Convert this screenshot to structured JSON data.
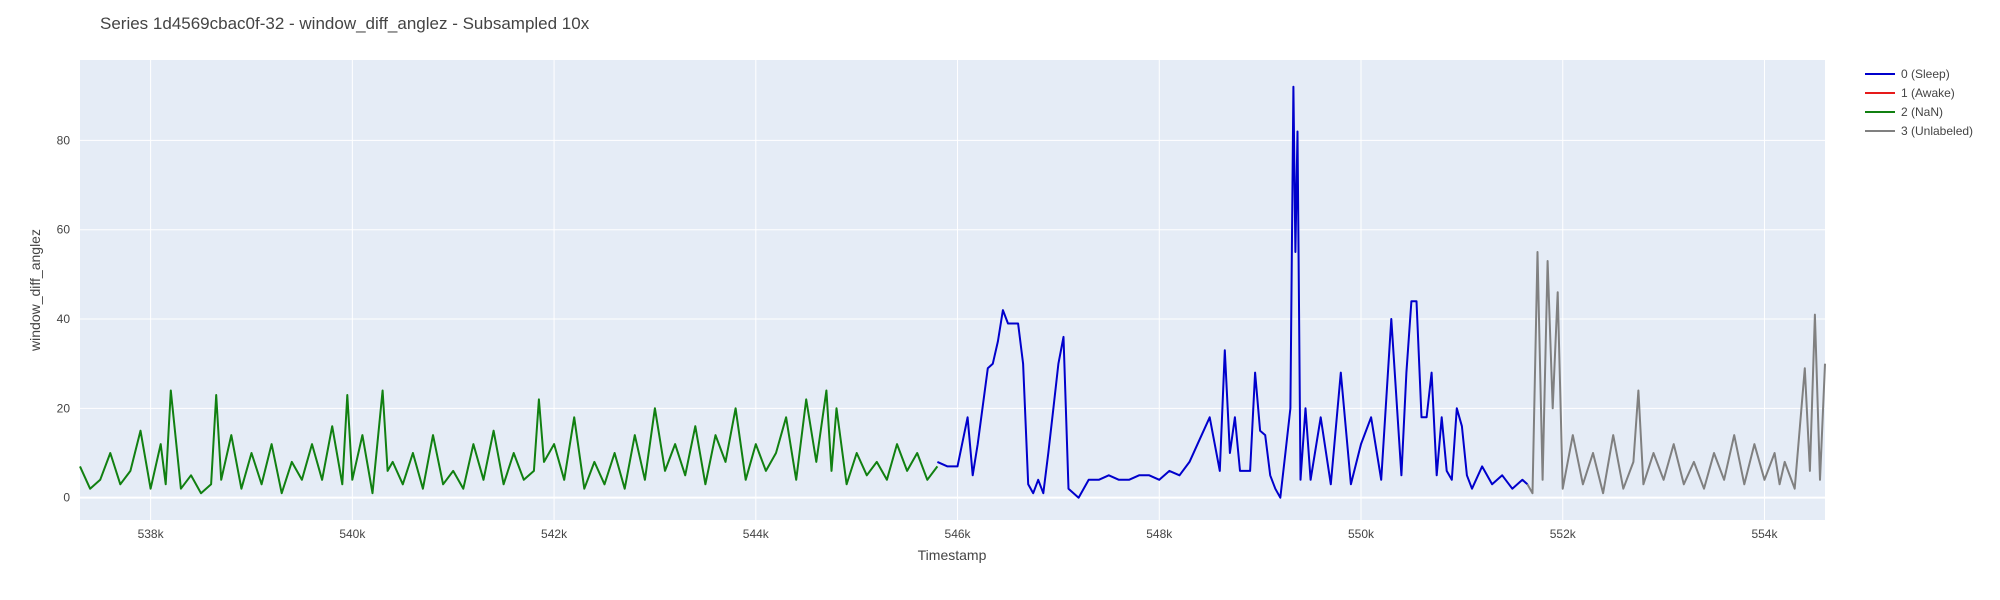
{
  "chart_data": {
    "type": "line",
    "title": "Series 1d4569cbac0f-32 - window_diff_anglez - Subsampled 10x",
    "xlabel": "Timestamp",
    "ylabel": "window_diff_anglez",
    "xlim": [
      537300,
      554600
    ],
    "ylim": [
      -5,
      98
    ],
    "x_ticks": [
      538000,
      540000,
      542000,
      544000,
      546000,
      548000,
      550000,
      552000,
      554000
    ],
    "x_tick_labels": [
      "538k",
      "540k",
      "542k",
      "544k",
      "546k",
      "548k",
      "550k",
      "552k",
      "554k"
    ],
    "y_ticks": [
      0,
      20,
      40,
      60,
      80
    ],
    "y_tick_labels": [
      "0",
      "20",
      "40",
      "60",
      "80"
    ],
    "grid": true,
    "legend_position": "top-right",
    "series": [
      {
        "name": "0 (Sleep)",
        "color": "#0000cc",
        "x": [
          545800,
          545900,
          546000,
          546100,
          546150,
          546200,
          546300,
          546350,
          546400,
          546450,
          546500,
          546600,
          546650,
          546700,
          546750,
          546800,
          546850,
          546900,
          546950,
          547000,
          547050,
          547100,
          547200,
          547300,
          547400,
          547500,
          547600,
          547700,
          547800,
          547900,
          548000,
          548100,
          548200,
          548300,
          548400,
          548500,
          548600,
          548650,
          548700,
          548750,
          548800,
          548900,
          548950,
          549000,
          549050,
          549100,
          549150,
          549200,
          549250,
          549300,
          549330,
          549350,
          549370,
          549400,
          549450,
          549500,
          549600,
          549700,
          549800,
          549900,
          550000,
          550100,
          550200,
          550300,
          550400,
          550450,
          550500,
          550550,
          550600,
          550650,
          550700,
          550750,
          550800,
          550850,
          550900,
          550950,
          551000,
          551050,
          551100,
          551200,
          551300,
          551400,
          551500,
          551600,
          551650
        ],
        "y": [
          8,
          7,
          7,
          18,
          5,
          12,
          29,
          30,
          35,
          42,
          39,
          39,
          30,
          3,
          1,
          4,
          1,
          10,
          20,
          30,
          36,
          2,
          0,
          4,
          4,
          5,
          4,
          4,
          5,
          5,
          4,
          6,
          5,
          8,
          13,
          18,
          6,
          33,
          10,
          18,
          6,
          6,
          28,
          15,
          14,
          5,
          2,
          0,
          10,
          20,
          92,
          55,
          82,
          4,
          20,
          4,
          18,
          3,
          28,
          3,
          12,
          18,
          4,
          40,
          5,
          28,
          44,
          44,
          18,
          18,
          28,
          5,
          18,
          6,
          4,
          20,
          16,
          5,
          2,
          7,
          3,
          5,
          2,
          4,
          3
        ]
      },
      {
        "name": "1 (Awake)",
        "color": "#e61a1a",
        "x": [],
        "y": []
      },
      {
        "name": "2 (NaN)",
        "color": "#118011",
        "x": [
          537300,
          537400,
          537500,
          537600,
          537700,
          537800,
          537900,
          538000,
          538100,
          538150,
          538200,
          538300,
          538400,
          538500,
          538600,
          538650,
          538700,
          538800,
          538900,
          539000,
          539100,
          539200,
          539300,
          539400,
          539500,
          539600,
          539700,
          539800,
          539900,
          539950,
          540000,
          540100,
          540200,
          540300,
          540350,
          540400,
          540500,
          540600,
          540700,
          540800,
          540900,
          541000,
          541100,
          541200,
          541300,
          541400,
          541500,
          541600,
          541700,
          541800,
          541850,
          541900,
          542000,
          542100,
          542200,
          542300,
          542400,
          542500,
          542600,
          542700,
          542800,
          542900,
          543000,
          543100,
          543200,
          543300,
          543400,
          543500,
          543600,
          543700,
          543800,
          543900,
          544000,
          544100,
          544200,
          544300,
          544400,
          544500,
          544600,
          544700,
          544750,
          544800,
          544900,
          545000,
          545100,
          545200,
          545300,
          545400,
          545500,
          545600,
          545700,
          545800
        ],
        "y": [
          7,
          2,
          4,
          10,
          3,
          6,
          15,
          2,
          12,
          3,
          24,
          2,
          5,
          1,
          3,
          23,
          4,
          14,
          2,
          10,
          3,
          12,
          1,
          8,
          4,
          12,
          4,
          16,
          3,
          23,
          4,
          14,
          1,
          24,
          6,
          8,
          3,
          10,
          2,
          14,
          3,
          6,
          2,
          12,
          4,
          15,
          3,
          10,
          4,
          6,
          22,
          8,
          12,
          4,
          18,
          2,
          8,
          3,
          10,
          2,
          14,
          4,
          20,
          6,
          12,
          5,
          16,
          3,
          14,
          8,
          20,
          4,
          12,
          6,
          10,
          18,
          4,
          22,
          8,
          24,
          6,
          20,
          3,
          10,
          5,
          8,
          4,
          12,
          6,
          10,
          4,
          7
        ]
      },
      {
        "name": "3 (Unlabeled)",
        "color": "#808080",
        "x": [
          551650,
          551700,
          551750,
          551800,
          551850,
          551900,
          551950,
          552000,
          552100,
          552200,
          552300,
          552400,
          552500,
          552600,
          552700,
          552750,
          552800,
          552900,
          553000,
          553100,
          553200,
          553300,
          553400,
          553500,
          553600,
          553700,
          553800,
          553900,
          554000,
          554100,
          554150,
          554200,
          554300,
          554400,
          554450,
          554500,
          554550,
          554600
        ],
        "y": [
          3,
          1,
          55,
          4,
          53,
          20,
          46,
          2,
          14,
          3,
          10,
          1,
          14,
          2,
          8,
          24,
          3,
          10,
          4,
          12,
          3,
          8,
          2,
          10,
          4,
          14,
          3,
          12,
          4,
          10,
          3,
          8,
          2,
          29,
          6,
          41,
          4,
          30
        ]
      }
    ]
  }
}
